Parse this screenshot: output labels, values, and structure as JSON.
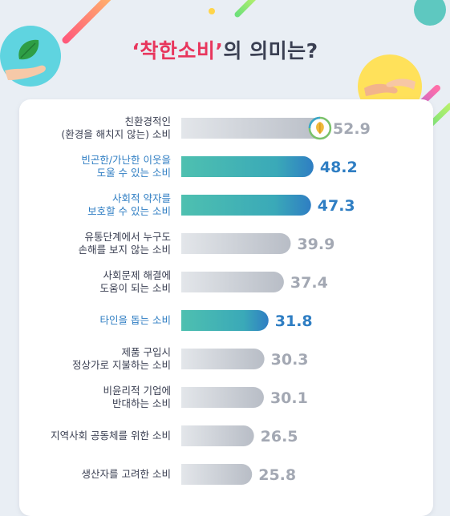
{
  "title": {
    "quoted": "‘착한소비’",
    "rest": "의 의미는?"
  },
  "icons": {
    "top_left": "hand-holding-leaf-icon",
    "top_right": "helping-hands-icon",
    "bar_badge": "recycle-leaf-icon"
  },
  "colors": {
    "highlight": "#2f7ec3",
    "title_accent": "#e8365d",
    "bar_grey": "#b8bdc6",
    "bar_teal": "#4ec0b0",
    "bar_blue": "#2f7ec3"
  },
  "chart_data": {
    "type": "bar",
    "orientation": "horizontal",
    "title": "‘착한소비’의 의미는?",
    "categories": [
      [
        "친환경적인",
        "(환경을 해치지 않는) 소비"
      ],
      [
        "빈곤한/가난한 이웃을",
        "도울 수 있는 소비"
      ],
      [
        "사회적 약자를",
        "보호할 수 있는 소비"
      ],
      [
        "유통단계에서 누구도",
        "손해를 보지 않는 소비"
      ],
      [
        "사회문제 해결에",
        "도움이 되는 소비"
      ],
      [
        "타인을 돕는 소비"
      ],
      [
        "제품 구입시",
        "정상가로 지불하는 소비"
      ],
      [
        "비윤리적 기업에",
        "반대하는 소비"
      ],
      [
        "지역사회 공동체를 위한 소비"
      ],
      [
        "생산자를 고려한 소비"
      ]
    ],
    "values": [
      52.9,
      48.2,
      47.3,
      39.9,
      37.4,
      31.8,
      30.3,
      30.1,
      26.5,
      25.8
    ],
    "value_labels": [
      "52.9",
      "48.2",
      "47.3",
      "39.9",
      "37.4",
      "31.8",
      "30.3",
      "30.1",
      "26.5",
      "25.8"
    ],
    "highlighted": [
      false,
      true,
      true,
      false,
      false,
      true,
      false,
      false,
      false,
      false
    ],
    "grid": false,
    "legend": false
  }
}
